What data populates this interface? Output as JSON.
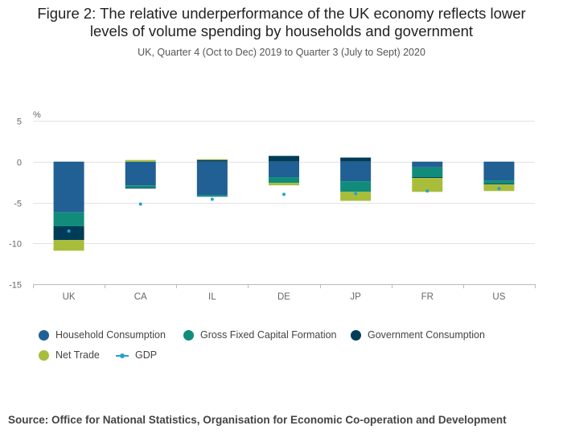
{
  "title_line1": "Figure 2: The relative underperformance of the UK economy reflects lower",
  "title_line2": "levels of volume spending by households and government",
  "subtitle": "UK, Quarter 4 (Oct to Dec) 2019 to Quarter 3 (July to Sept) 2020",
  "source": "Source: Office for National Statistics, Organisation for Economic Co-operation and Development",
  "chart_data": {
    "type": "bar",
    "stacked": true,
    "ylabel": "%",
    "ylim": [
      -15,
      5
    ],
    "yticks": [
      5,
      0,
      -5,
      -10,
      -15
    ],
    "grid": true,
    "legend_position": "bottom",
    "categories": [
      "UK",
      "CA",
      "IL",
      "DE",
      "JP",
      "FR",
      "US"
    ],
    "series": [
      {
        "name": "Household Consumption",
        "color": "#206095",
        "values": [
          -6.2,
          -2.9,
          -4.1,
          -1.9,
          -2.4,
          -0.7,
          -2.3
        ]
      },
      {
        "name": "Gross Fixed Capital Formation",
        "color": "#118c7b",
        "values": [
          -1.7,
          -0.3,
          -0.2,
          -0.7,
          -1.3,
          -1.2,
          -0.4
        ]
      },
      {
        "name": "Government Consumption",
        "color": "#003c57",
        "values": [
          -1.7,
          -0.1,
          0.2,
          0.7,
          0.5,
          -0.1,
          -0.1
        ]
      },
      {
        "name": "Net Trade",
        "color": "#a8bd3a",
        "values": [
          -1.3,
          0.2,
          0.1,
          -0.3,
          -1.1,
          -1.7,
          -0.8
        ]
      }
    ],
    "gdp": {
      "name": "GDP",
      "color": "#27a0cc",
      "values": [
        -8.5,
        -5.2,
        -4.6,
        -4.0,
        -3.9,
        -3.6,
        -3.3
      ]
    }
  }
}
